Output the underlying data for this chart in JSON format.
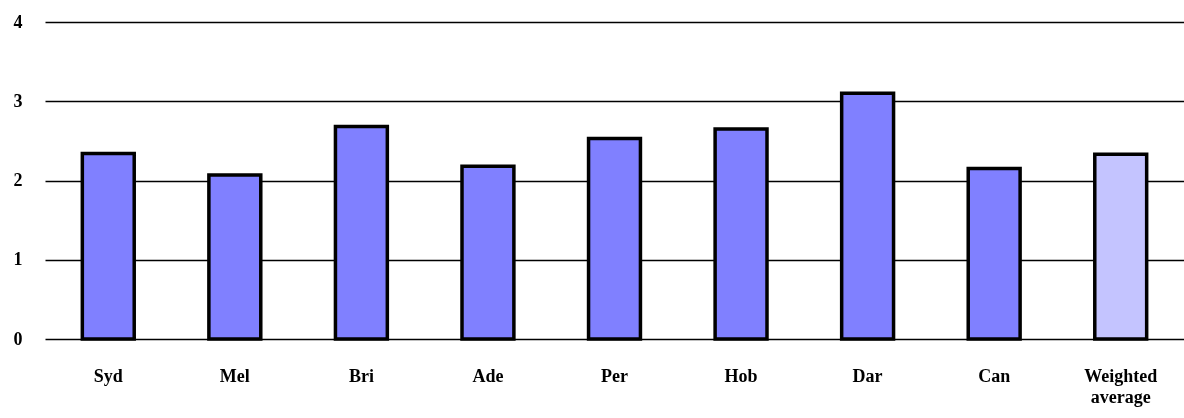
{
  "chart_data": {
    "type": "bar",
    "categories": [
      "Syd",
      "Mel",
      "Bri",
      "Ade",
      "Per",
      "Hob",
      "Dar",
      "Can",
      "Weighted average"
    ],
    "values": [
      2.34,
      2.07,
      2.68,
      2.18,
      2.53,
      2.65,
      3.1,
      2.15,
      2.33
    ],
    "colors": [
      "#8080ff",
      "#8080ff",
      "#8080ff",
      "#8080ff",
      "#8080ff",
      "#8080ff",
      "#8080ff",
      "#8080ff",
      "#c4c4ff"
    ],
    "ylim": [
      0,
      4
    ],
    "yticks": [
      0,
      1,
      2,
      3,
      4
    ],
    "grid": "y"
  }
}
